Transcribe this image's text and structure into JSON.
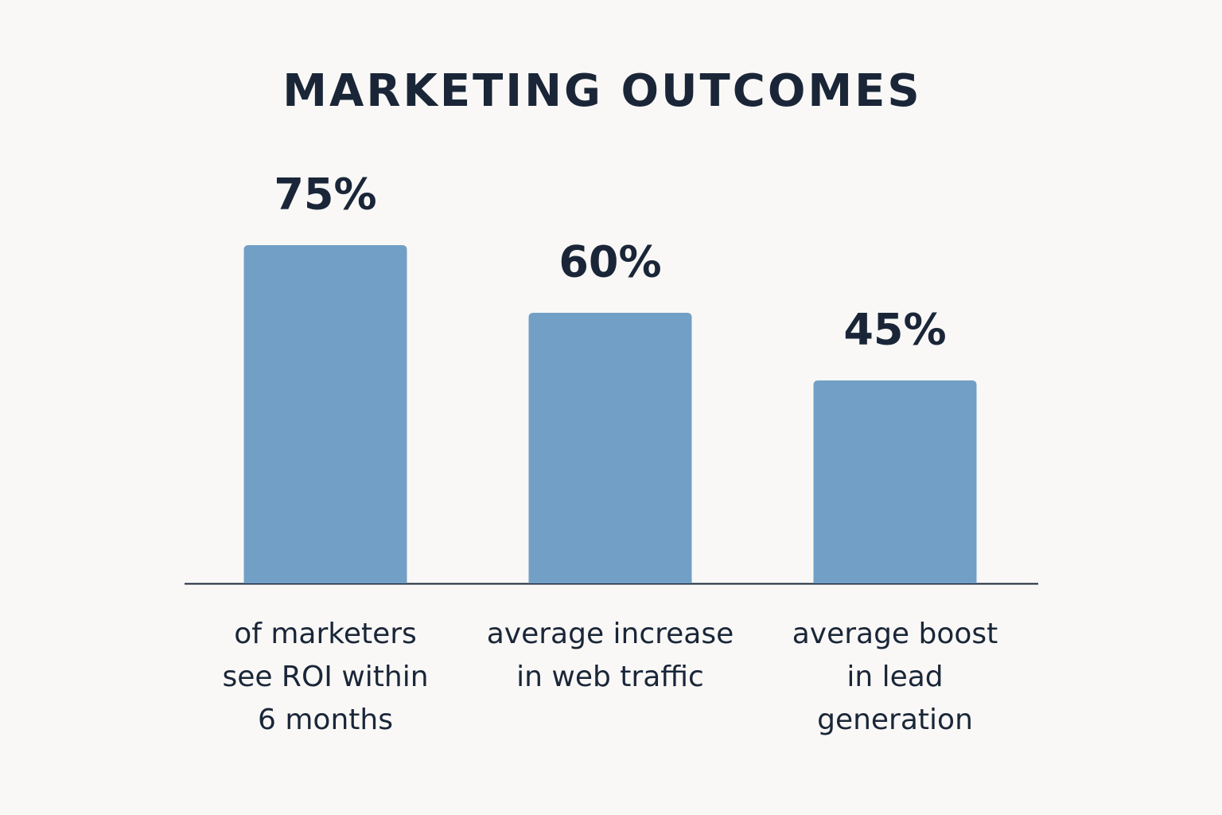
{
  "chart_data": {
    "type": "bar",
    "title": "MARKETING OUTCOMES",
    "categories": [
      "of marketers\nsee ROI within\n6 months",
      "average increase\nin web traffic",
      "average boost\nin lead\ngeneration"
    ],
    "values": [
      75,
      60,
      45
    ],
    "value_labels": [
      "75%",
      "60%",
      "45%"
    ],
    "color": "#729fc6"
  }
}
